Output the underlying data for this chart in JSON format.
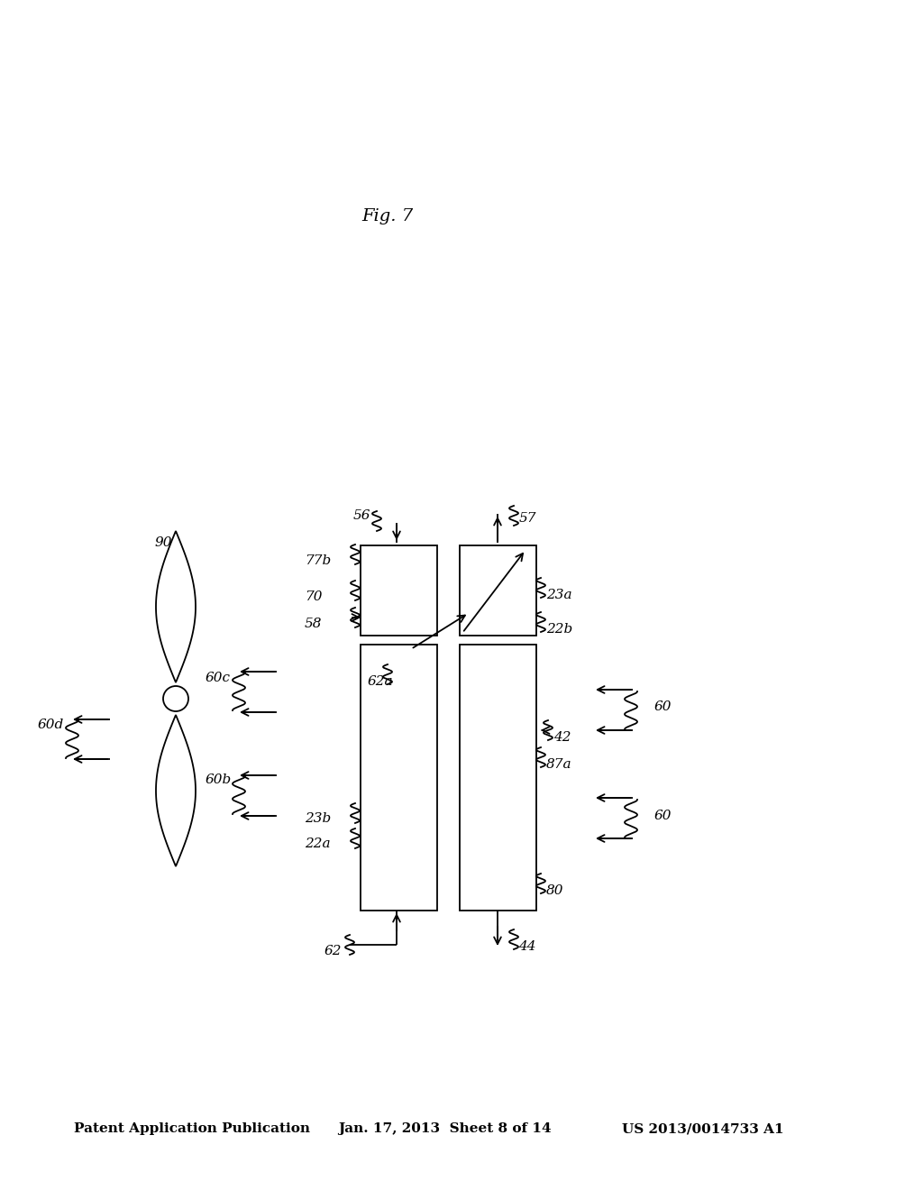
{
  "bg": "#ffffff",
  "header_left": "Patent Application Publication",
  "header_center": "Jan. 17, 2013  Sheet 8 of 14",
  "header_right": "US 2013/0014733 A1",
  "fig_label": "Fig. 7",
  "lw": 1.3
}
